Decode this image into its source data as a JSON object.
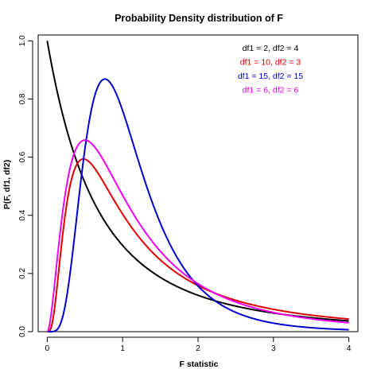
{
  "chart_data": {
    "type": "line",
    "title": "Probability Density distribution of F",
    "xlabel": "F statistic",
    "ylabel": "P(F, df1, df2)",
    "xlim": [
      -0.12,
      4.12
    ],
    "ylim": [
      0,
      1.02
    ],
    "xticks": [
      0,
      1,
      2,
      3,
      4
    ],
    "yticks": [
      0.0,
      0.2,
      0.4,
      0.6,
      0.8,
      1.0
    ],
    "xtick_labels": [
      "0",
      "1",
      "2",
      "3",
      "4"
    ],
    "ytick_labels": [
      "0.0",
      "0.2",
      "0.4",
      "0.6",
      "0.8",
      "1.0"
    ],
    "legend_position": "top-right",
    "grid": false,
    "series": [
      {
        "name": "df1 = 2, df2 = 4",
        "df1": 2,
        "df2": 4,
        "color": "#000000"
      },
      {
        "name": "df1 = 10, df2 = 3",
        "df1": 10,
        "df2": 3,
        "color": "#dd0000"
      },
      {
        "name": "df1 = 15, df2 = 15",
        "df1": 15,
        "df2": 15,
        "color": "#0000cc"
      },
      {
        "name": "df1 = 6, df2 = 6",
        "df1": 6,
        "df2": 6,
        "color": "#ee00ee"
      }
    ]
  }
}
